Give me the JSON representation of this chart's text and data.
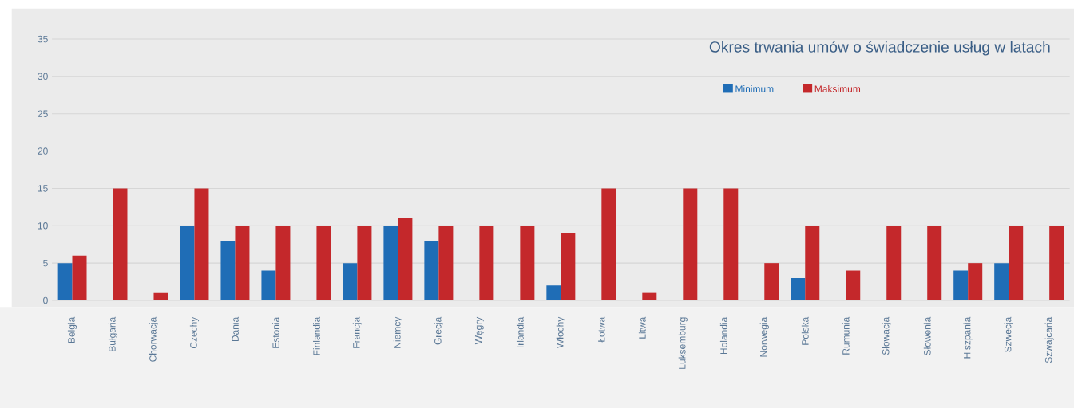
{
  "chart_data": {
    "type": "bar",
    "title": "Okres trwania umów o świadczenie usług  w  latach",
    "categories": [
      "Belgia",
      "Bułgaria",
      "Chorwacja",
      "Czechy",
      "Dania",
      "Estonia",
      "Finlandia",
      "Francja",
      "Niemcy",
      "Grecja",
      "Węgry",
      "Irlandia",
      "Włochy",
      "Łotwa",
      "Litwa",
      "Luksemburg",
      "Holandia",
      "Norwegia",
      "Polska",
      "Rumunia",
      "Słowacja",
      "Słowenia",
      "Hiszpania",
      "Szwecja",
      "Szwajcaria"
    ],
    "series": [
      {
        "name": "Minimum",
        "color": "#1f6db6",
        "values": [
          5,
          null,
          null,
          10,
          8,
          4,
          null,
          5,
          10,
          8,
          null,
          null,
          2,
          null,
          null,
          null,
          null,
          null,
          3,
          null,
          null,
          null,
          4,
          5,
          null
        ]
      },
      {
        "name": "Maksimum",
        "color": "#c4282b",
        "values": [
          6,
          15,
          1,
          15,
          10,
          10,
          10,
          10,
          11,
          10,
          10,
          10,
          9,
          15,
          1,
          15,
          15,
          5,
          10,
          4,
          10,
          10,
          5,
          10,
          10
        ]
      }
    ],
    "ylim": [
      0,
      35
    ],
    "yticks": [
      0,
      5,
      10,
      15,
      20,
      25,
      30,
      35
    ],
    "grid": "y",
    "legend": "top right"
  }
}
